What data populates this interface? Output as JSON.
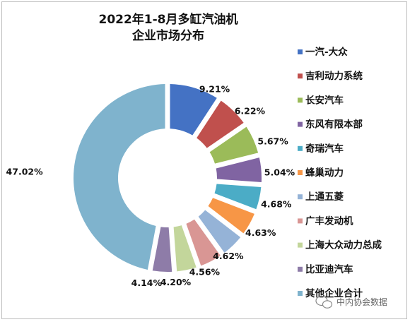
{
  "chart_data": {
    "type": "pie",
    "title_lines": [
      "2022年1-8月多缸汽油机",
      "企业市场分布"
    ],
    "categories": [
      "一汽-大众",
      "吉利动力系统",
      "长安汽车",
      "东风有限本部",
      "奇瑞汽车",
      "蜂巢动力",
      "上通五菱",
      "广丰发动机",
      "上海大众动力总成",
      "比亚迪汽车",
      "其他企业合计"
    ],
    "values": [
      9.21,
      6.22,
      5.67,
      5.04,
      4.68,
      4.63,
      4.62,
      4.56,
      4.2,
      4.14,
      47.02
    ],
    "value_labels": [
      "9.21%",
      "6.22%",
      "5.67%",
      "5.04%",
      "4.68%",
      "4.63%",
      "4.62%",
      "4.56%",
      "4.20%",
      "4.14%",
      "47.02%"
    ],
    "colors": [
      "#4472C4",
      "#C0504D",
      "#9BBB59",
      "#8064A2",
      "#4BACC6",
      "#F79646",
      "#95B3D7",
      "#D99694",
      "#C3D69B",
      "#8E7CA8",
      "#7FB3CD"
    ],
    "donut": true,
    "legend_position": "right"
  },
  "watermark": "中内协会数据"
}
